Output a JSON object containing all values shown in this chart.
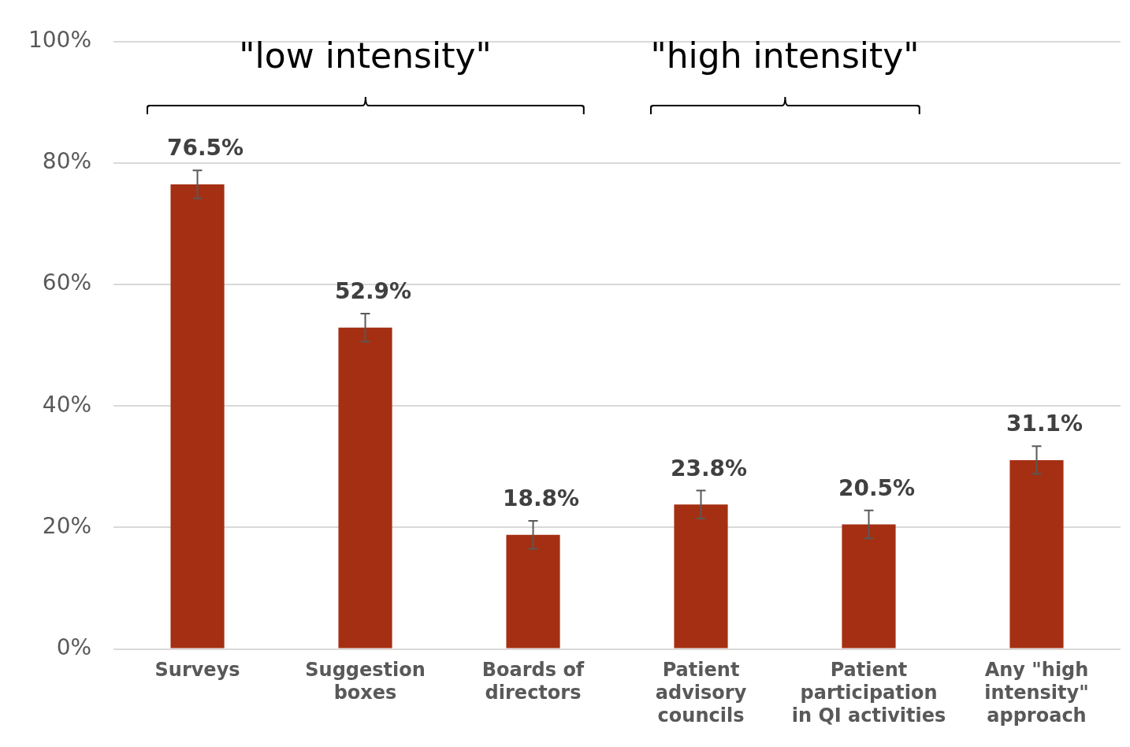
{
  "chart_data": {
    "type": "bar",
    "categories": [
      "Surveys",
      "Suggestion boxes",
      "Boards of directors",
      "Patient advisory councils",
      "Patient participation in QI activities",
      "Any \"high intensity\" approach"
    ],
    "values": [
      76.5,
      52.9,
      18.8,
      23.8,
      20.5,
      31.1
    ],
    "errors": [
      2.3,
      2.3,
      2.3,
      2.3,
      2.3,
      2.3
    ],
    "value_labels": [
      "76.5%",
      "52.9%",
      "18.8%",
      "23.8%",
      "20.5%",
      "31.1%"
    ],
    "color": "#a52f12",
    "ylim": [
      0,
      100
    ],
    "yticks": [
      {
        "value": 0,
        "label": "0%"
      },
      {
        "value": 20,
        "label": "20%"
      },
      {
        "value": 40,
        "label": "40%"
      },
      {
        "value": 60,
        "label": "60%"
      },
      {
        "value": 80,
        "label": "80%"
      },
      {
        "value": 100,
        "label": "100%"
      }
    ],
    "grid": "y",
    "legend": false,
    "annotations": [
      "\"low intensity\"",
      "\"high intensity\""
    ]
  }
}
